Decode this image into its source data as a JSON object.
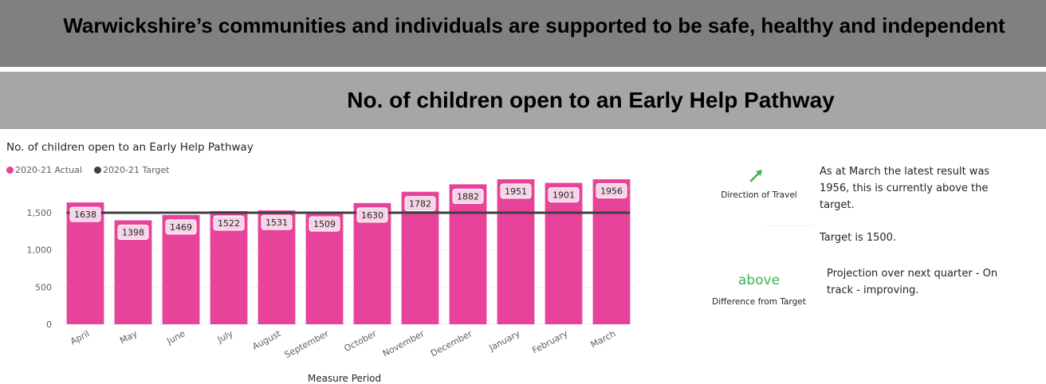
{
  "banners": {
    "main_title": "Warwickshire’s communities and individuals are supported to be safe, healthy and independent",
    "sub_title": "No. of children open to an Early Help Pathway"
  },
  "chart_data": {
    "type": "bar",
    "title": "No. of children open to an Early Help Pathway",
    "xlabel": "Measure Period",
    "ylabel": "",
    "categories": [
      "April",
      "May",
      "June",
      "July",
      "August",
      "September",
      "October",
      "November",
      "December",
      "January",
      "February",
      "March"
    ],
    "series": [
      {
        "name": "2020-21 Actual",
        "type": "bar",
        "color": "#e8439b",
        "values": [
          1638,
          1398,
          1469,
          1522,
          1531,
          1509,
          1630,
          1782,
          1882,
          1951,
          1901,
          1956
        ]
      },
      {
        "name": "2020-21 Target",
        "type": "line",
        "color": "#404040",
        "values": [
          1500,
          1500,
          1500,
          1500,
          1500,
          1500,
          1500,
          1500,
          1500,
          1500,
          1500,
          1500
        ]
      }
    ],
    "yticks": [
      0,
      500,
      1000,
      1500
    ],
    "ytick_labels": [
      "0",
      "500",
      "1,000",
      "1,500"
    ],
    "ylim": [
      0,
      1950
    ],
    "data_labels": true,
    "grid": "dotted horizontal",
    "legend_position": "top-left"
  },
  "kpi": {
    "direction_label": "Direction of Travel",
    "direction_icon": "arrow-up-right-icon",
    "direction_color": "#3eb34f",
    "difference_value": "above",
    "difference_label": "Difference from Target"
  },
  "commentary": {
    "line1": "As at March the latest result was",
    "line2": "1956, this is currently above the",
    "line3": "target.",
    "target_text": "Target is 1500.",
    "projection_line1": "Projection over next quarter - On",
    "projection_line2": "track - improving."
  }
}
